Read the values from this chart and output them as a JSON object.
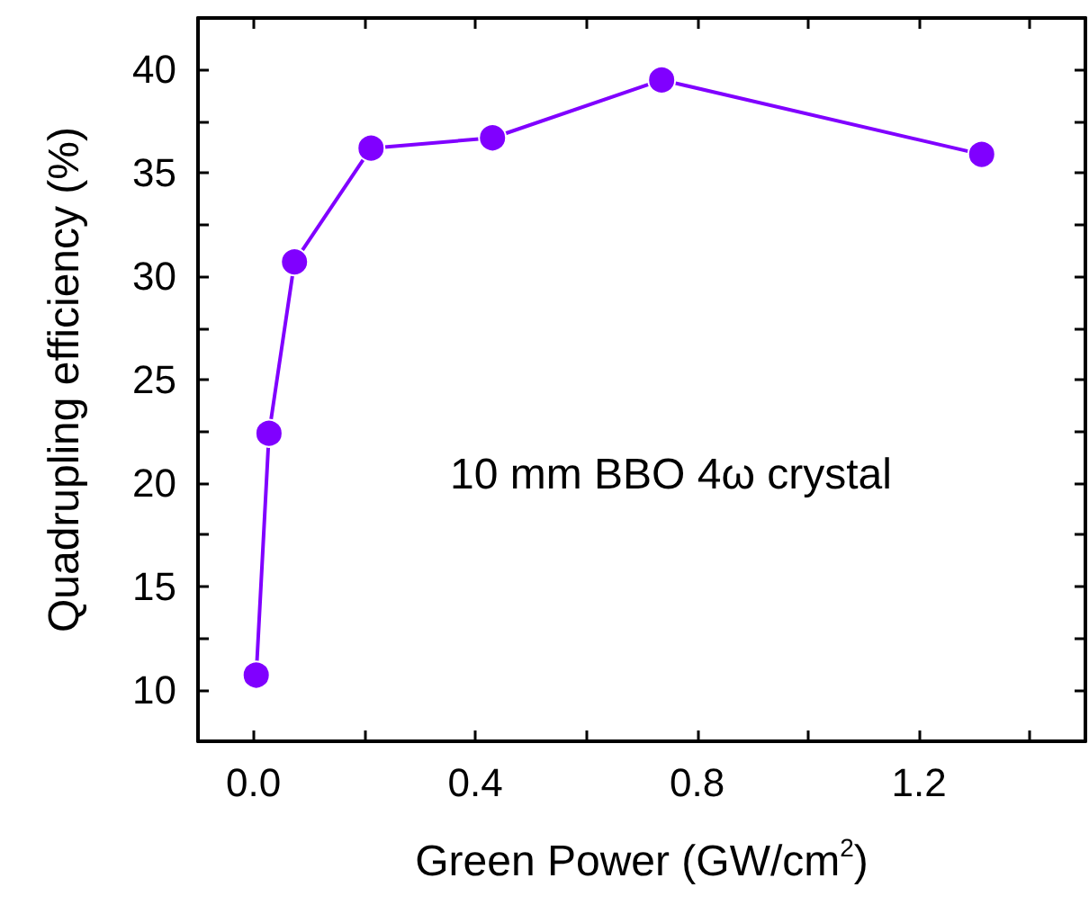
{
  "chart_data": {
    "type": "line",
    "xlabel": "Green Power (GW/cm$^{2}$)",
    "ylabel": "Quadrupling efficiency (%)",
    "x": [
      0.005,
      0.028,
      0.074,
      0.212,
      0.431,
      0.736,
      1.313
    ],
    "series": [
      {
        "color": "#8000ff",
        "values": [
          10.7,
          22.4,
          30.7,
          36.2,
          36.7,
          39.5,
          35.9
        ]
      }
    ],
    "xlim": [
      -0.1,
      1.5
    ],
    "xticks": [
      {
        "value": 0,
        "label": "0.0"
      },
      {
        "value": 0.2,
        "label": null
      },
      {
        "value": 0.4,
        "label": "0.4"
      },
      {
        "value": 0.6,
        "label": null
      },
      {
        "value": 0.8,
        "label": "0.8"
      },
      {
        "value": 1.0,
        "label": null
      },
      {
        "value": 1.2,
        "label": "1.2"
      },
      {
        "value": 1.4,
        "label": null
      }
    ],
    "ylim": [
      7.5,
      42.5
    ],
    "yticks": [
      {
        "value": 7.5,
        "label": null
      },
      10,
      {
        "value": 12.5,
        "label": null
      },
      15,
      {
        "value": 17.5,
        "label": null
      },
      20,
      {
        "value": 22.5,
        "label": null
      },
      25,
      {
        "value": 27.5,
        "label": null
      },
      30,
      {
        "value": 32.5,
        "label": null
      },
      35,
      {
        "value": 37.5,
        "label": null
      },
      40
    ],
    "annotations": [
      "10 mm BBO 4ω crystal"
    ],
    "marker": "circle",
    "line_style": "solid",
    "grid": false
  }
}
